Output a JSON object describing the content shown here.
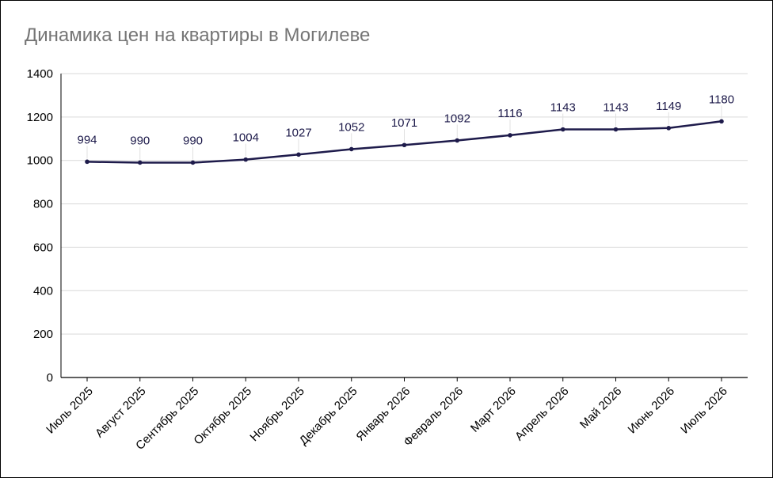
{
  "chart_data": {
    "type": "line",
    "title": "Динамика цен на квартиры в Могилеве",
    "xlabel": "",
    "ylabel": "",
    "categories": [
      "Июль 2025",
      "Август 2025",
      "Сентябрь 2025",
      "Октябрь 2025",
      "Ноябрь 2025",
      "Декабрь 2025",
      "Январь 2026",
      "Февраль 2026",
      "Март 2026",
      "Апрель 2026",
      "Май 2026",
      "Июнь 2026",
      "Июль 2026"
    ],
    "values": [
      994,
      990,
      990,
      1004,
      1027,
      1052,
      1071,
      1092,
      1116,
      1143,
      1143,
      1149,
      1180
    ],
    "data_labels": [
      "994",
      "990",
      "990",
      "1004",
      "1027",
      "1052",
      "1071",
      "1092",
      "1116",
      "1143",
      "1143",
      "1149",
      "1180"
    ],
    "ylim": [
      0,
      1400
    ],
    "yticks": [
      0,
      200,
      400,
      600,
      800,
      1000,
      1200,
      1400
    ],
    "grid": true,
    "legend": "none",
    "line_color": "#1e1b4b",
    "grid_color": "#d9d9d9"
  }
}
